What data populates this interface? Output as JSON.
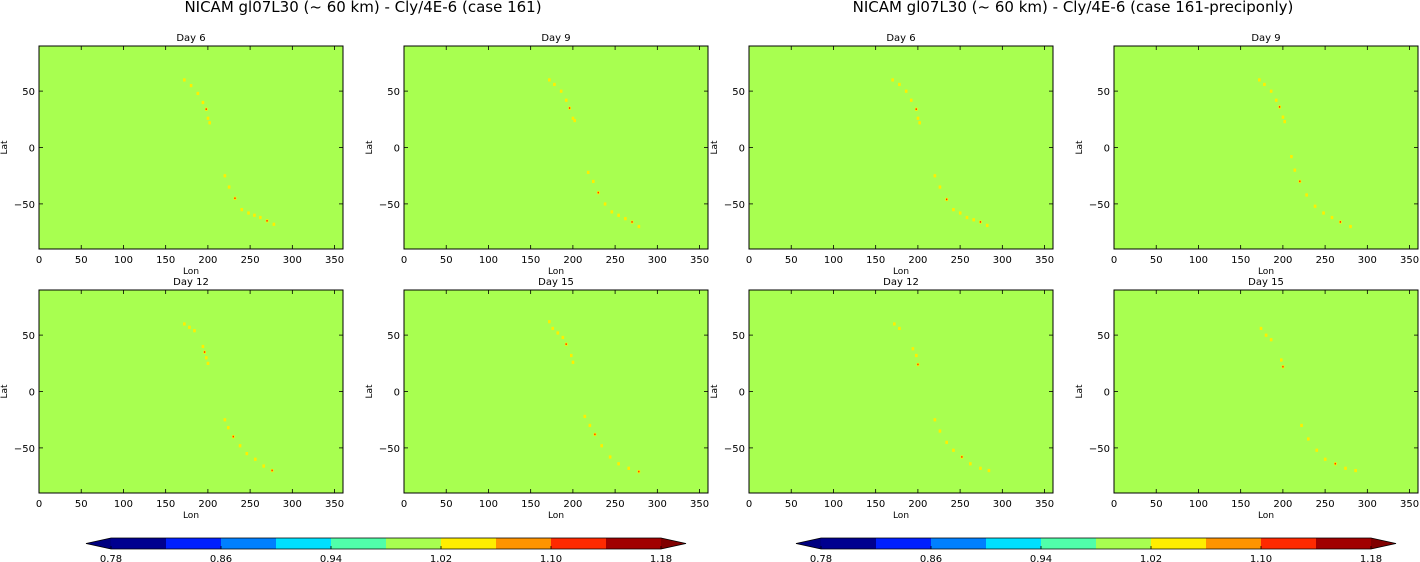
{
  "figure": {
    "suptitles": [
      "NICAM gl07L30 (~ 60 km) - Cly/4E-6 (case 161)",
      "NICAM gl07L30 (~ 60 km) - Cly/4E-6 (case 161-preciponly)"
    ]
  },
  "colors": {
    "field": "#a8ff50",
    "feature_yellow": "#ffee00",
    "feature_red": "#ff2a00",
    "colormap": [
      "#00008f",
      "#0020ff",
      "#0080ff",
      "#00e0ff",
      "#50ffaa",
      "#a8ff50",
      "#ffee00",
      "#ff9400",
      "#ff2a00",
      "#a10000"
    ],
    "under": "#000080",
    "over": "#800000"
  },
  "colorbars": [
    {
      "ticks": [
        "0.78",
        "0.86",
        "0.94",
        "1.02",
        "1.10",
        "1.18"
      ]
    },
    {
      "ticks": [
        "0.78",
        "0.86",
        "0.94",
        "1.02",
        "1.10",
        "1.18"
      ]
    }
  ],
  "chart_data": [
    {
      "type": "heatmap",
      "figure": 1,
      "title": "Day 6",
      "xlabel": "Lon",
      "ylabel": "Lat",
      "xlim": [
        0,
        360
      ],
      "ylim": [
        -90,
        90
      ],
      "xticks": [
        "0",
        "50",
        "100",
        "150",
        "200",
        "250",
        "300",
        "350"
      ],
      "yticks": [
        "50",
        "0",
        "−50"
      ],
      "background_value": 1.0,
      "feature_points": [
        [
          172,
          60
        ],
        [
          180,
          55
        ],
        [
          188,
          48
        ],
        [
          194,
          40
        ],
        [
          198,
          34
        ],
        [
          200,
          26
        ],
        [
          202,
          22
        ],
        [
          220,
          -25
        ],
        [
          225,
          -35
        ],
        [
          232,
          -45
        ],
        [
          240,
          -55
        ],
        [
          248,
          -58
        ],
        [
          255,
          -60
        ],
        [
          262,
          -62
        ],
        [
          270,
          -65
        ],
        [
          278,
          -68
        ]
      ]
    },
    {
      "type": "heatmap",
      "figure": 1,
      "title": "Day 9",
      "xlabel": "Lon",
      "ylabel": "Lat",
      "xlim": [
        0,
        360
      ],
      "ylim": [
        -90,
        90
      ],
      "xticks": [
        "0",
        "50",
        "100",
        "150",
        "200",
        "250",
        "300",
        "350"
      ],
      "yticks": [
        "50",
        "0",
        "−50"
      ],
      "background_value": 1.0,
      "feature_points": [
        [
          172,
          60
        ],
        [
          178,
          56
        ],
        [
          186,
          50
        ],
        [
          192,
          42
        ],
        [
          196,
          35
        ],
        [
          200,
          26
        ],
        [
          202,
          24
        ],
        [
          218,
          -22
        ],
        [
          224,
          -30
        ],
        [
          230,
          -40
        ],
        [
          238,
          -50
        ],
        [
          246,
          -57
        ],
        [
          254,
          -60
        ],
        [
          262,
          -63
        ],
        [
          270,
          -66
        ],
        [
          278,
          -70
        ]
      ]
    },
    {
      "type": "heatmap",
      "figure": 1,
      "title": "Day 12",
      "xlabel": "Lon",
      "ylabel": "Lat",
      "xlim": [
        0,
        360
      ],
      "ylim": [
        -90,
        90
      ],
      "xticks": [
        "0",
        "50",
        "100",
        "150",
        "200",
        "250",
        "300",
        "350"
      ],
      "yticks": [
        "50",
        "0",
        "−50"
      ],
      "background_value": 1.0,
      "feature_points": [
        [
          172,
          60
        ],
        [
          178,
          57
        ],
        [
          184,
          54
        ],
        [
          194,
          40
        ],
        [
          196,
          35
        ],
        [
          198,
          30
        ],
        [
          200,
          25
        ],
        [
          220,
          -25
        ],
        [
          224,
          -32
        ],
        [
          230,
          -40
        ],
        [
          238,
          -48
        ],
        [
          246,
          -55
        ],
        [
          256,
          -60
        ],
        [
          266,
          -66
        ],
        [
          276,
          -70
        ]
      ]
    },
    {
      "type": "heatmap",
      "figure": 1,
      "title": "Day 15",
      "xlabel": "Lon",
      "ylabel": "Lat",
      "xlim": [
        0,
        360
      ],
      "ylim": [
        -90,
        90
      ],
      "xticks": [
        "0",
        "50",
        "100",
        "150",
        "200",
        "250",
        "300",
        "350"
      ],
      "yticks": [
        "50",
        "0",
        "−50"
      ],
      "background_value": 1.0,
      "feature_points": [
        [
          172,
          62
        ],
        [
          176,
          56
        ],
        [
          182,
          52
        ],
        [
          188,
          48
        ],
        [
          192,
          42
        ],
        [
          198,
          32
        ],
        [
          200,
          26
        ],
        [
          214,
          -22
        ],
        [
          220,
          -30
        ],
        [
          226,
          -38
        ],
        [
          234,
          -48
        ],
        [
          244,
          -58
        ],
        [
          254,
          -64
        ],
        [
          266,
          -68
        ],
        [
          278,
          -71
        ]
      ]
    },
    {
      "type": "heatmap",
      "figure": 2,
      "title": "Day 6",
      "xlabel": "Lon",
      "ylabel": "Lat",
      "xlim": [
        0,
        360
      ],
      "ylim": [
        -90,
        90
      ],
      "xticks": [
        "0",
        "50",
        "100",
        "150",
        "200",
        "250",
        "300",
        "350"
      ],
      "yticks": [
        "50",
        "0",
        "−50"
      ],
      "background_value": 1.0,
      "feature_points": [
        [
          170,
          60
        ],
        [
          178,
          56
        ],
        [
          186,
          50
        ],
        [
          192,
          42
        ],
        [
          198,
          34
        ],
        [
          200,
          26
        ],
        [
          202,
          22
        ],
        [
          220,
          -25
        ],
        [
          226,
          -35
        ],
        [
          234,
          -46
        ],
        [
          242,
          -55
        ],
        [
          250,
          -58
        ],
        [
          258,
          -62
        ],
        [
          266,
          -64
        ],
        [
          274,
          -66
        ],
        [
          282,
          -69
        ]
      ]
    },
    {
      "type": "heatmap",
      "figure": 2,
      "title": "Day 9",
      "xlabel": "Lon",
      "ylabel": "Lat",
      "xlim": [
        0,
        360
      ],
      "ylim": [
        -90,
        90
      ],
      "xticks": [
        "0",
        "50",
        "100",
        "150",
        "200",
        "250",
        "300",
        "350"
      ],
      "yticks": [
        "50",
        "0",
        "−50"
      ],
      "background_value": 1.0,
      "feature_points": [
        [
          172,
          60
        ],
        [
          178,
          56
        ],
        [
          186,
          50
        ],
        [
          192,
          42
        ],
        [
          196,
          36
        ],
        [
          200,
          27
        ],
        [
          202,
          23
        ],
        [
          210,
          -8
        ],
        [
          214,
          -20
        ],
        [
          220,
          -30
        ],
        [
          228,
          -42
        ],
        [
          238,
          -52
        ],
        [
          248,
          -58
        ],
        [
          258,
          -62
        ],
        [
          268,
          -66
        ],
        [
          280,
          -70
        ]
      ]
    },
    {
      "type": "heatmap",
      "figure": 2,
      "title": "Day 12",
      "xlabel": "Lon",
      "ylabel": "Lat",
      "xlim": [
        0,
        360
      ],
      "ylim": [
        -90,
        90
      ],
      "xticks": [
        "0",
        "50",
        "100",
        "150",
        "200",
        "250",
        "300",
        "350"
      ],
      "yticks": [
        "50",
        "0",
        "−50"
      ],
      "background_value": 1.0,
      "feature_points": [
        [
          172,
          60
        ],
        [
          178,
          56
        ],
        [
          194,
          38
        ],
        [
          198,
          32
        ],
        [
          200,
          24
        ],
        [
          220,
          -25
        ],
        [
          226,
          -35
        ],
        [
          234,
          -45
        ],
        [
          242,
          -52
        ],
        [
          252,
          -58
        ],
        [
          262,
          -64
        ],
        [
          274,
          -68
        ],
        [
          284,
          -70
        ]
      ]
    },
    {
      "type": "heatmap",
      "figure": 2,
      "title": "Day 15",
      "xlabel": "Lon",
      "ylabel": "Lat",
      "xlim": [
        0,
        360
      ],
      "ylim": [
        -90,
        90
      ],
      "xticks": [
        "0",
        "50",
        "100",
        "150",
        "200",
        "250",
        "300",
        "350"
      ],
      "yticks": [
        "50",
        "0",
        "−50"
      ],
      "background_value": 1.0,
      "feature_points": [
        [
          174,
          56
        ],
        [
          180,
          50
        ],
        [
          186,
          46
        ],
        [
          198,
          28
        ],
        [
          200,
          22
        ],
        [
          222,
          -30
        ],
        [
          230,
          -42
        ],
        [
          240,
          -52
        ],
        [
          250,
          -60
        ],
        [
          262,
          -64
        ],
        [
          274,
          -68
        ],
        [
          286,
          -70
        ]
      ]
    }
  ]
}
